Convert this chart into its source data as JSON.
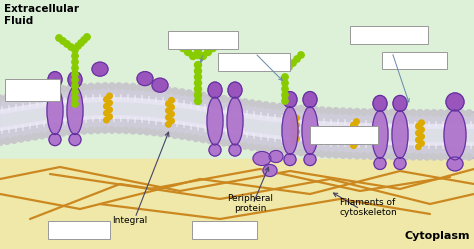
{
  "bg_top_color": "#ddf0d8",
  "bg_bottom_color": "#f0e8a8",
  "title_extracellular": "Extracellular\nFluid",
  "title_cytoplasm": "Cytoplasm",
  "label_integral": "Integral",
  "label_peripheral": "Peripheral\nprotein",
  "label_filaments": "Filaments of\ncytoskeleton",
  "membrane_fill": "#c8b8d8",
  "membrane_interior": "#e0d8ec",
  "lipid_head_color": "#c8c8cc",
  "lipid_tail_color": "#e8e4f0",
  "protein_fill": "#9955bb",
  "protein_fill2": "#b075cc",
  "protein_outline": "#6030a0",
  "green_color": "#88cc00",
  "yellow_color": "#ddaa00",
  "filament_color": "#cc8820",
  "box_face": "#ffffff",
  "box_edge": "#999999",
  "arrow_color": "#444466",
  "text_color": "#000000",
  "figsize": [
    4.74,
    2.49
  ],
  "dpi": 100
}
